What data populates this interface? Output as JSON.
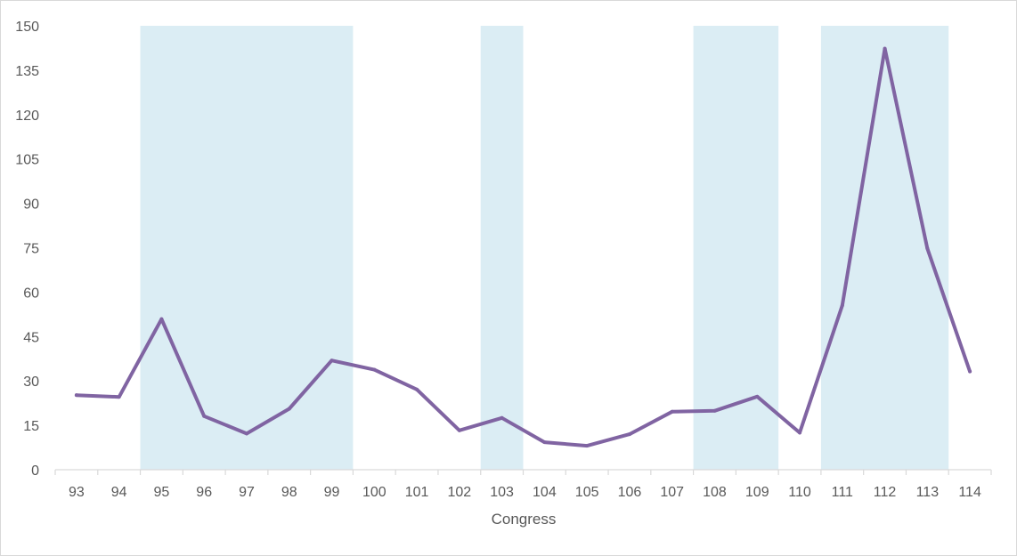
{
  "chart_data": {
    "type": "line",
    "title": "",
    "xlabel": "Congress",
    "ylabel": "",
    "categories": [
      "93",
      "94",
      "95",
      "96",
      "97",
      "98",
      "99",
      "100",
      "101",
      "102",
      "103",
      "104",
      "105",
      "106",
      "107",
      "108",
      "109",
      "110",
      "111",
      "112",
      "113",
      "114"
    ],
    "series": [
      {
        "values": [
          25.2,
          24.6,
          50.9,
          18.1,
          12.2,
          20.6,
          36.9,
          33.8,
          27.1,
          13.3,
          17.5,
          9.3,
          8.1,
          12.0,
          19.6,
          19.9,
          24.7,
          12.5,
          55.5,
          142.3,
          74.8,
          33.2
        ]
      }
    ],
    "shaded_ranges": [
      {
        "from": "95",
        "to": "99"
      },
      {
        "from": "103",
        "to": "103"
      },
      {
        "from": "108",
        "to": "109"
      },
      {
        "from": "111",
        "to": "113"
      }
    ],
    "ylim": [
      0,
      150
    ],
    "yticks": [
      0,
      15,
      30,
      45,
      60,
      75,
      90,
      105,
      120,
      135,
      150
    ],
    "grid": false,
    "legend": "none",
    "colors": {
      "line": "#8064a2",
      "shade": "#dbedf4",
      "axis": "#d9d9d9",
      "text": "#595959"
    }
  }
}
